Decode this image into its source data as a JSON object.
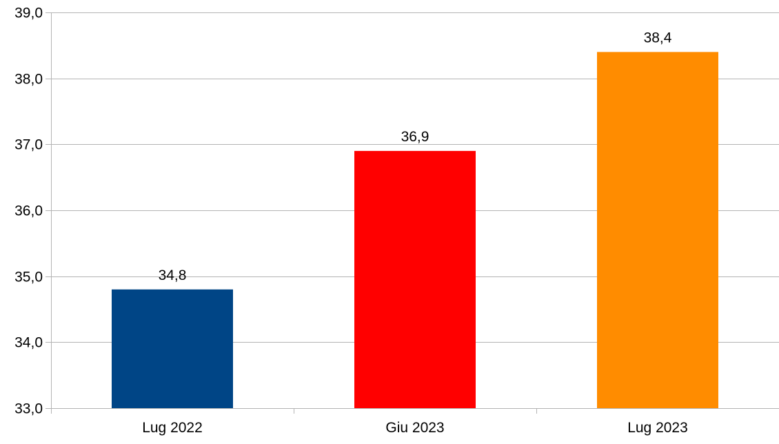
{
  "chart_data": {
    "type": "bar",
    "title": "",
    "xlabel": "",
    "ylabel": "",
    "categories": [
      "Lug 2022",
      "Giu 2023",
      "Lug 2023"
    ],
    "values": [
      34.8,
      36.9,
      38.4
    ],
    "value_labels": [
      "34,8",
      "36,9",
      "38,4"
    ],
    "colors": [
      "#004586",
      "#ff0000",
      "#ff8c00"
    ],
    "ylim": [
      33.0,
      39.0
    ],
    "yticks": [
      33.0,
      34.0,
      35.0,
      36.0,
      37.0,
      38.0,
      39.0
    ],
    "ytick_labels": [
      "33,0",
      "34,0",
      "35,0",
      "36,0",
      "37,0",
      "38,0",
      "39,0"
    ],
    "grid": "horizontal",
    "legend": "none"
  }
}
